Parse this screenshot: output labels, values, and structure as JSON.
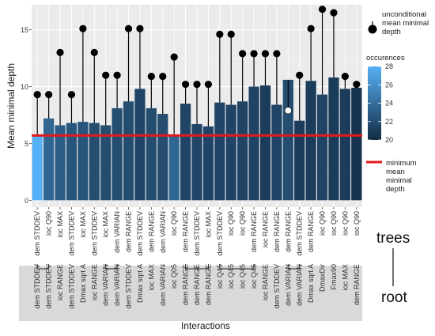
{
  "chart_data": {
    "type": "bar",
    "xlabel": "Interactions",
    "ylabel": "Mean minimal depth",
    "ylim": [
      -0.6,
      17.2
    ],
    "yticks": [
      0,
      5,
      10,
      15
    ],
    "grid": true,
    "legend_position": "right",
    "categories": [
      "dem STDDEV-dem STDDEV",
      "ioc Q90-dem STDDEV",
      "ioc MAX-ioc RANGE",
      "dem STDDEV-dem STDDEV",
      "ioc MAX-Dmax sqrt A",
      "dem STDDEV-ioc RANGE",
      "ioc MAX-dem VARIAN",
      "dem VARIAN-dem VARIAN",
      "dem RANGE-dem STDDEV",
      "dem STDDEV-Dmax sqrt A",
      "dem RANGE-ioc MAX",
      "dem VARIAN-dem VARIAN",
      "ioc Q90-ioc Q05",
      "dem RANGE-dem RANGE",
      "dem STDDEV-dem RANGE",
      "ioc MAX-dem RANGE",
      "dem STDDEV-ioc Q45",
      "ioc Q90-ioc Q45",
      "ioc Q90-ioc Q45",
      "dem RANGE-ioc Q45",
      "ioc RANGE-ioc RANGE",
      "dem RANGE-dem STDDEV",
      "dem RANGE-dem VARIAN",
      "dem STDDEV-dem VARIAN",
      "dem RANGE-Dmax sqrt A",
      "ioc Q90-DmaxDir",
      "ioc Q90-Fmax90",
      "ioc Q90-ioc MAX",
      "ioc Q90-dem RANGE"
    ],
    "series": [
      {
        "name": "occurences",
        "values": [
          5.7,
          7.2,
          6.6,
          6.8,
          6.9,
          6.8,
          6.6,
          8.1,
          8.7,
          9.8,
          8.1,
          7.6,
          5.7,
          8.5,
          6.7,
          6.5,
          8.6,
          8.4,
          8.7,
          10.0,
          10.1,
          8.4,
          10.6,
          7.0,
          10.5,
          9.3,
          10.8,
          9.8,
          9.9
        ]
      }
    ],
    "occurences": [
      28,
      23.5,
      23,
      22.5,
      22.5,
      22,
      22,
      22,
      22,
      21.5,
      22,
      22,
      23.5,
      21.5,
      21.5,
      21.5,
      21.5,
      21.5,
      21.5,
      21.5,
      21,
      21.5,
      22,
      21,
      21,
      21.5,
      21,
      21,
      20.5
    ],
    "unconditional_mean_minimal_depth": [
      9.3,
      9.3,
      13.0,
      9.3,
      15.1,
      13.0,
      11.0,
      11.0,
      15.1,
      15.1,
      10.9,
      10.9,
      12.6,
      10.2,
      10.2,
      10.2,
      14.6,
      14.6,
      12.9,
      12.9,
      12.9,
      12.9,
      7.9,
      11.0,
      15.1,
      16.8,
      16.5,
      10.9,
      10.2
    ],
    "unconditional_marker_fill": [
      "#000000",
      "#000000",
      "#000000",
      "#000000",
      "#000000",
      "#000000",
      "#000000",
      "#000000",
      "#000000",
      "#000000",
      "#000000",
      "#000000",
      "#000000",
      "#000000",
      "#000000",
      "#000000",
      "#000000",
      "#000000",
      "#000000",
      "#000000",
      "#000000",
      "#000000",
      "#ffffff",
      "#000000",
      "#000000",
      "#000000",
      "#000000",
      "#000000",
      "#000000"
    ],
    "minimum_mean_minimal_depth": 5.7,
    "legend": {
      "unconditional": "unconditional mean minimal depth",
      "occurences_title": "occurences",
      "occurences_ticks": [
        20,
        22,
        24,
        26,
        28
      ],
      "minimum": "minimum mean minimal depth"
    },
    "colors": {
      "low": "#132B43",
      "high": "#56B1F7",
      "minimum_line": "#e31a1c",
      "panel": "#ebebeb",
      "root_band": "#d9d9d9"
    },
    "side_labels": {
      "trees": "trees",
      "root": "root"
    }
  }
}
